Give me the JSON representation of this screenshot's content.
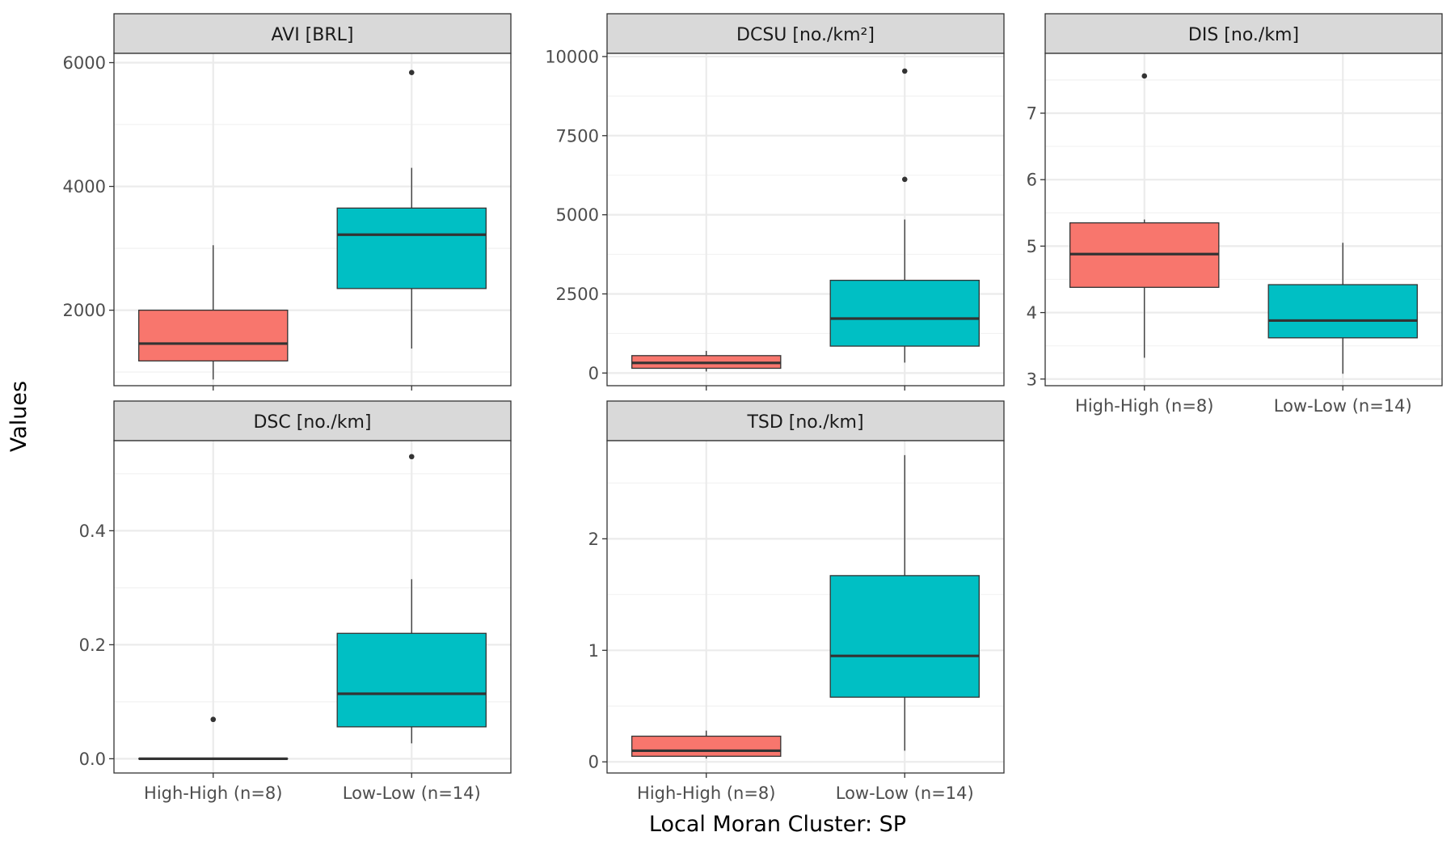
{
  "chart_data": {
    "type": "boxplot",
    "xlabel": "Local Moran Cluster: SP",
    "ylabel": "Values",
    "categories": [
      "High-High (n=8)",
      "Low-Low (n=14)"
    ],
    "colors": {
      "High-High (n=8)": "#F8766D",
      "Low-Low (n=14)": "#00BFC4"
    },
    "grid": true,
    "legend": "none",
    "panels": [
      {
        "title": "AVI [BRL]",
        "ylim": [
          780,
          6150
        ],
        "yticks": [
          2000,
          4000,
          6000
        ],
        "ytick_labels": [
          "2000",
          "4000",
          "6000"
        ],
        "boxes": [
          {
            "group": "High-High (n=8)",
            "whisker_low": 880,
            "q1": 1180,
            "median": 1460,
            "q3": 2000,
            "whisker_high": 3050,
            "outliers": []
          },
          {
            "group": "Low-Low (n=14)",
            "whisker_low": 1380,
            "q1": 2350,
            "median": 3220,
            "q3": 3650,
            "whisker_high": 4300,
            "outliers": [
              5840
            ]
          }
        ]
      },
      {
        "title": "DCSU [no./km²]",
        "ylim": [
          -400,
          10100
        ],
        "yticks": [
          0,
          2500,
          5000,
          7500,
          10000
        ],
        "ytick_labels": [
          "0",
          "2500",
          "5000",
          "7500",
          "10000"
        ],
        "boxes": [
          {
            "group": "High-High (n=8)",
            "whisker_low": 50,
            "q1": 150,
            "median": 320,
            "q3": 550,
            "whisker_high": 700,
            "outliers": []
          },
          {
            "group": "Low-Low (n=14)",
            "whisker_low": 330,
            "q1": 850,
            "median": 1720,
            "q3": 2930,
            "whisker_high": 4850,
            "outliers": [
              6120,
              9540
            ]
          }
        ]
      },
      {
        "title": "DIS [no./km]",
        "ylim": [
          2.9,
          7.9
        ],
        "yticks": [
          3,
          4,
          5,
          6,
          7
        ],
        "ytick_labels": [
          "3",
          "4",
          "5",
          "6",
          "7"
        ],
        "boxes": [
          {
            "group": "High-High (n=8)",
            "whisker_low": 3.32,
            "q1": 4.38,
            "median": 4.88,
            "q3": 5.35,
            "whisker_high": 5.4,
            "outliers": [
              7.56
            ]
          },
          {
            "group": "Low-Low (n=14)",
            "whisker_low": 3.08,
            "q1": 3.62,
            "median": 3.88,
            "q3": 4.42,
            "whisker_high": 5.05,
            "outliers": []
          }
        ]
      },
      {
        "title": "DSC [no./km]",
        "ylim": [
          -0.025,
          0.558
        ],
        "yticks": [
          0.0,
          0.2,
          0.4
        ],
        "ytick_labels": [
          "0.0",
          "0.2",
          "0.4"
        ],
        "boxes": [
          {
            "group": "High-High (n=8)",
            "whisker_low": 0.0,
            "q1": 0.0,
            "median": 0.0,
            "q3": 0.0,
            "whisker_high": 0.0,
            "outliers": [
              0.069
            ]
          },
          {
            "group": "Low-Low (n=14)",
            "whisker_low": 0.027,
            "q1": 0.056,
            "median": 0.114,
            "q3": 0.22,
            "whisker_high": 0.315,
            "outliers": [
              0.53
            ]
          }
        ]
      },
      {
        "title": "TSD [no./km]",
        "ylim": [
          -0.1,
          2.88
        ],
        "yticks": [
          0,
          1,
          2
        ],
        "ytick_labels": [
          "0",
          "1",
          "2"
        ],
        "boxes": [
          {
            "group": "High-High (n=8)",
            "whisker_low": 0.03,
            "q1": 0.05,
            "median": 0.1,
            "q3": 0.23,
            "whisker_high": 0.28,
            "outliers": []
          },
          {
            "group": "Low-Low (n=14)",
            "whisker_low": 0.1,
            "q1": 0.58,
            "median": 0.95,
            "q3": 1.67,
            "whisker_high": 2.75,
            "outliers": []
          }
        ]
      }
    ]
  }
}
